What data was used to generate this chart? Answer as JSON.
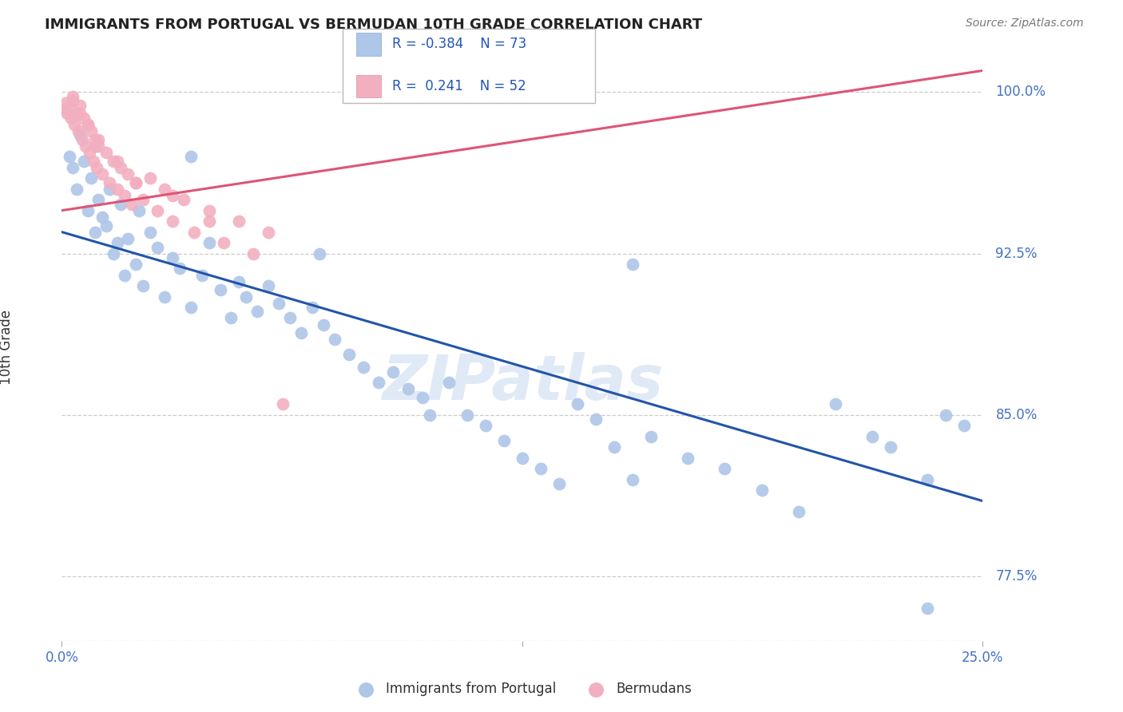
{
  "title": "IMMIGRANTS FROM PORTUGAL VS BERMUDAN 10TH GRADE CORRELATION CHART",
  "source": "Source: ZipAtlas.com",
  "ylabel": "10th Grade",
  "y_ticks": [
    77.5,
    85.0,
    92.5,
    100.0
  ],
  "y_tick_labels": [
    "77.5%",
    "85.0%",
    "92.5%",
    "100.0%"
  ],
  "x_min": 0.0,
  "x_max": 25.0,
  "y_min": 74.5,
  "y_max": 101.8,
  "legend_r1": "R = -0.384",
  "legend_n1": "N = 73",
  "legend_r2": "R =  0.241",
  "legend_n2": "N = 52",
  "blue_color": "#aec6e8",
  "pink_color": "#f2afc0",
  "blue_line_color": "#2255aa",
  "pink_line_color": "#dd5577",
  "watermark": "ZIPatlas",
  "blue_scatter_x": [
    0.2,
    0.3,
    0.4,
    0.5,
    0.6,
    0.7,
    0.8,
    0.9,
    1.0,
    1.1,
    1.2,
    1.3,
    1.4,
    1.5,
    1.6,
    1.7,
    1.8,
    2.0,
    2.1,
    2.2,
    2.4,
    2.6,
    2.8,
    3.0,
    3.2,
    3.5,
    3.8,
    4.0,
    4.3,
    4.6,
    4.8,
    5.0,
    5.3,
    5.6,
    5.9,
    6.2,
    6.5,
    6.8,
    7.1,
    7.4,
    7.8,
    8.2,
    8.6,
    9.0,
    9.4,
    9.8,
    10.5,
    11.0,
    11.5,
    12.0,
    12.5,
    13.0,
    13.5,
    14.0,
    14.5,
    15.0,
    15.5,
    16.0,
    17.0,
    18.0,
    19.0,
    20.0,
    21.0,
    22.0,
    22.5,
    23.5,
    24.0,
    24.5,
    7.0,
    10.0,
    15.5,
    23.5,
    3.5
  ],
  "blue_scatter_y": [
    97.0,
    96.5,
    95.5,
    98.0,
    96.8,
    94.5,
    96.0,
    93.5,
    95.0,
    94.2,
    93.8,
    95.5,
    92.5,
    93.0,
    94.8,
    91.5,
    93.2,
    92.0,
    94.5,
    91.0,
    93.5,
    92.8,
    90.5,
    92.3,
    91.8,
    90.0,
    91.5,
    93.0,
    90.8,
    89.5,
    91.2,
    90.5,
    89.8,
    91.0,
    90.2,
    89.5,
    88.8,
    90.0,
    89.2,
    88.5,
    87.8,
    87.2,
    86.5,
    87.0,
    86.2,
    85.8,
    86.5,
    85.0,
    84.5,
    83.8,
    83.0,
    82.5,
    81.8,
    85.5,
    84.8,
    83.5,
    82.0,
    84.0,
    83.0,
    82.5,
    81.5,
    80.5,
    85.5,
    84.0,
    83.5,
    82.0,
    85.0,
    84.5,
    92.5,
    85.0,
    92.0,
    76.0,
    97.0
  ],
  "pink_scatter_x": [
    0.05,
    0.1,
    0.15,
    0.2,
    0.25,
    0.3,
    0.35,
    0.4,
    0.45,
    0.5,
    0.55,
    0.6,
    0.65,
    0.7,
    0.75,
    0.8,
    0.85,
    0.9,
    0.95,
    1.0,
    1.1,
    1.2,
    1.3,
    1.4,
    1.5,
    1.6,
    1.7,
    1.8,
    1.9,
    2.0,
    2.2,
    2.4,
    2.6,
    2.8,
    3.0,
    3.3,
    3.6,
    4.0,
    4.4,
    4.8,
    5.2,
    5.6,
    1.0,
    1.5,
    2.0,
    3.0,
    4.0,
    0.3,
    0.5,
    0.7,
    0.9,
    6.0
  ],
  "pink_scatter_y": [
    99.2,
    99.5,
    99.0,
    99.3,
    98.8,
    99.6,
    98.5,
    99.0,
    98.2,
    99.4,
    97.8,
    98.8,
    97.5,
    98.5,
    97.2,
    98.2,
    96.8,
    97.8,
    96.5,
    97.5,
    96.2,
    97.2,
    95.8,
    96.8,
    95.5,
    96.5,
    95.2,
    96.2,
    94.8,
    95.8,
    95.0,
    96.0,
    94.5,
    95.5,
    94.0,
    95.0,
    93.5,
    94.5,
    93.0,
    94.0,
    92.5,
    93.5,
    97.8,
    96.8,
    95.8,
    95.2,
    94.0,
    99.8,
    99.0,
    98.5,
    97.5,
    85.5
  ],
  "blue_trendline_x": [
    0.0,
    25.0
  ],
  "blue_trendline_y": [
    93.5,
    81.0
  ],
  "pink_trendline_x": [
    0.0,
    25.0
  ],
  "pink_trendline_y": [
    94.5,
    101.0
  ]
}
